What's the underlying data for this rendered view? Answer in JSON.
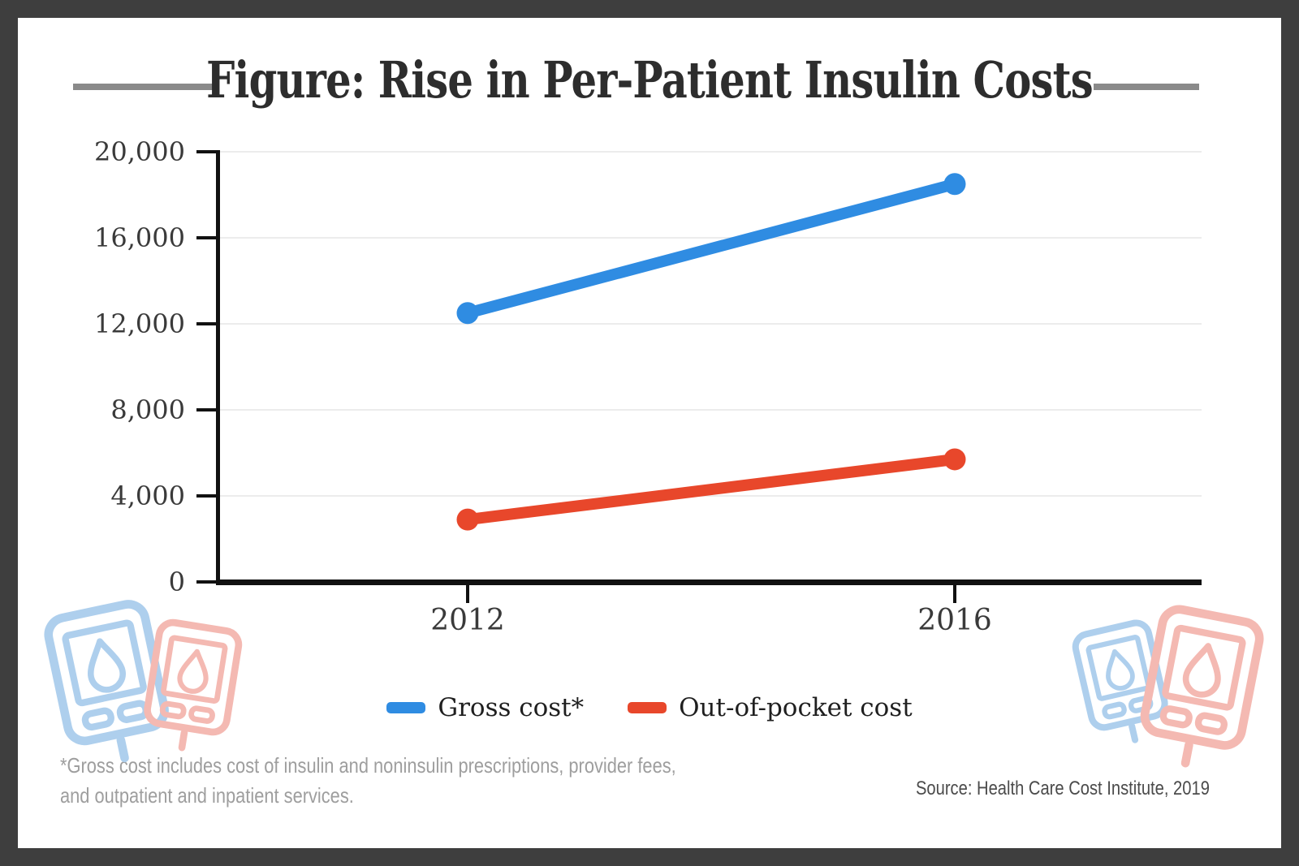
{
  "title": "Figure: Rise in Per-Patient Insulin Costs",
  "chart_data": {
    "type": "line",
    "title": "Figure: Rise in Per-Patient Insulin Costs",
    "categories": [
      "2012",
      "2016"
    ],
    "series": [
      {
        "id": "gross-cost",
        "name": "Gross cost*",
        "color": "#2f8ce2",
        "values": [
          12500,
          18500
        ]
      },
      {
        "id": "out-of-pocket-cost",
        "name": "Out-of-pocket cost",
        "color": "#e8472b",
        "values": [
          2900,
          5700
        ]
      }
    ],
    "ylim": [
      0,
      20000
    ],
    "yticks": [
      0,
      4000,
      8000,
      12000,
      16000,
      20000
    ],
    "ytick_labels": [
      "0",
      "4,000",
      "8,000",
      "12,000",
      "16,000",
      "20,000"
    ],
    "grid": "horizontal-light",
    "legend_position": "bottom-center"
  },
  "footnote": {
    "line1": "*Gross cost includes cost of insulin and noninsulin prescriptions, provider fees,",
    "line2": "and outpatient and inpatient services."
  },
  "source": "Source: Health Care Cost Institute, 2019",
  "icons": {
    "decor_left": "glucose-meter-pair",
    "decor_right": "glucose-meter-pair"
  },
  "colors": {
    "frame": "#3e3e3e",
    "dash": "#8a8a8a",
    "title-ink": "#2d2d2d",
    "axis-ink": "#3a3a3a",
    "grid": "#ececec",
    "axis-line": "#111111",
    "gross-line": "#2f8ce2",
    "oop-line": "#e8472b",
    "decor-blue": "#aecfed",
    "decor-red": "#f4b9b2",
    "footnote-ink": "#9e9e9e",
    "source-ink": "#4b4b4b"
  }
}
